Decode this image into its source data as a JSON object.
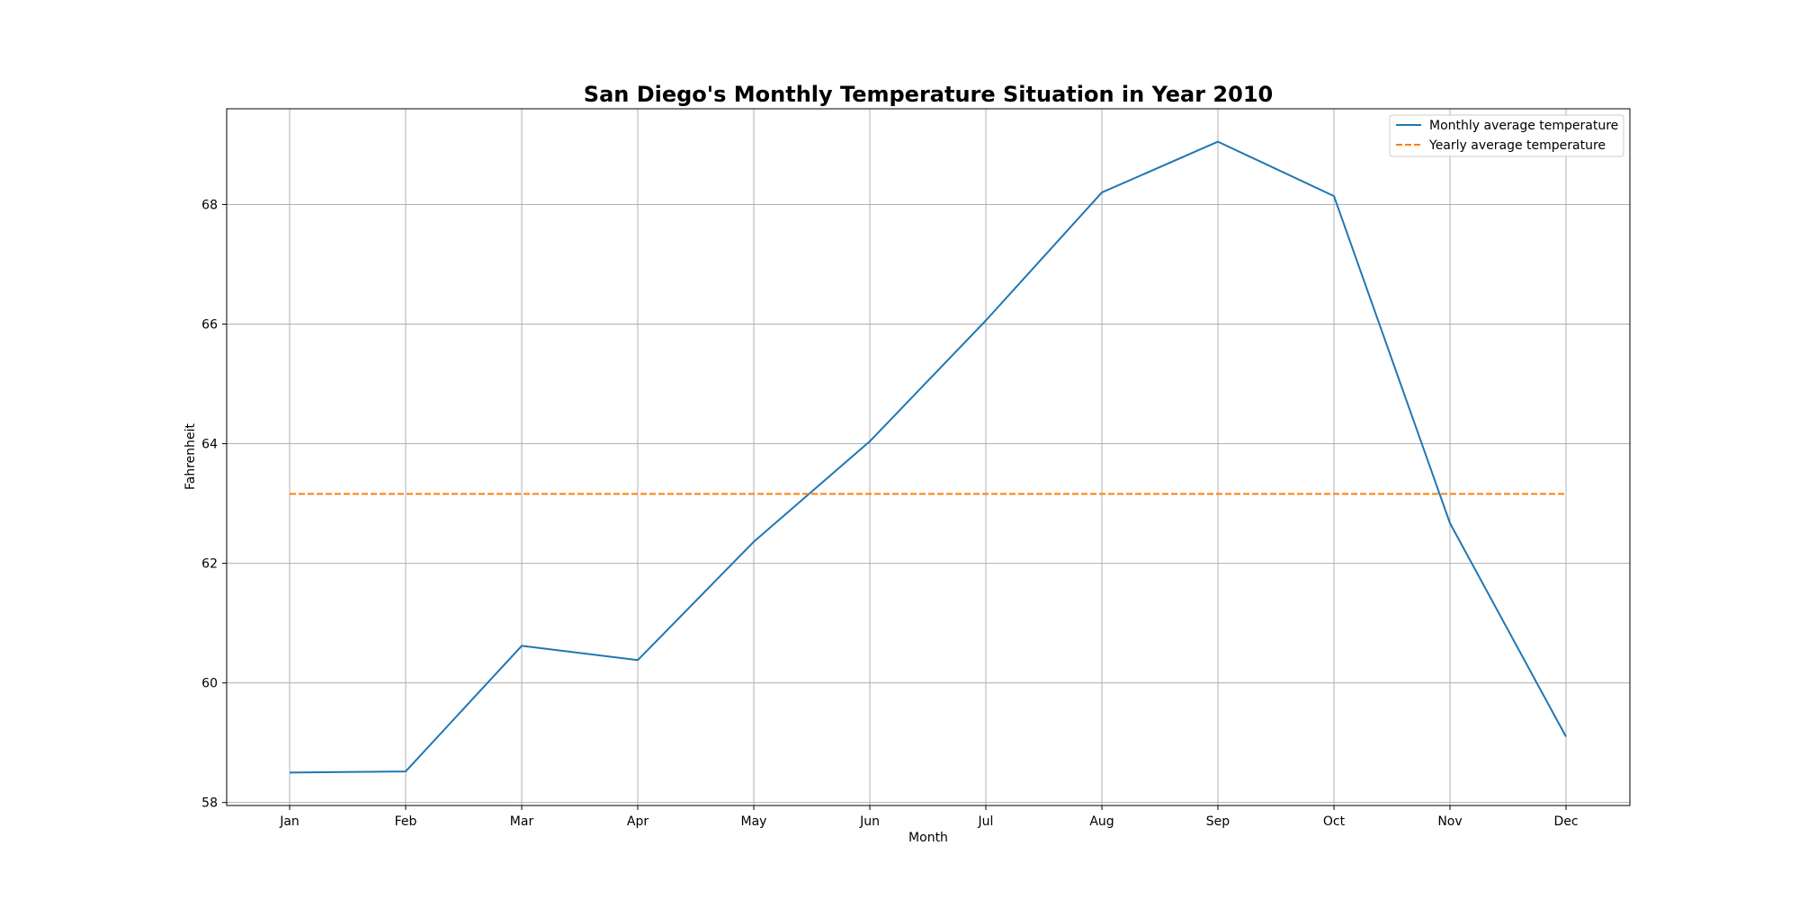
{
  "chart_data": {
    "type": "line",
    "title": "San Diego's Monthly Temperature Situation in Year 2010",
    "xlabel": "Month",
    "ylabel": "Fahrenheit",
    "categories": [
      "Jan",
      "Feb",
      "Mar",
      "Apr",
      "May",
      "Jun",
      "Jul",
      "Aug",
      "Sep",
      "Oct",
      "Nov",
      "Dec"
    ],
    "ylim": [
      57.95,
      69.6
    ],
    "yticks": [
      58,
      60,
      62,
      64,
      66,
      68
    ],
    "grid": true,
    "legend_position": "top-right",
    "series": [
      {
        "name": "Monthly average temperature",
        "style": "solid",
        "color": "#1f77b4",
        "values": [
          58.5,
          58.52,
          60.62,
          60.38,
          62.36,
          64.04,
          66.06,
          68.2,
          69.05,
          68.14,
          62.67,
          59.1
        ]
      },
      {
        "name": "Yearly average temperature",
        "style": "dashed",
        "color": "#ff7f0e",
        "values": [
          63.16,
          63.16,
          63.16,
          63.16,
          63.16,
          63.16,
          63.16,
          63.16,
          63.16,
          63.16,
          63.16,
          63.16
        ]
      }
    ]
  }
}
